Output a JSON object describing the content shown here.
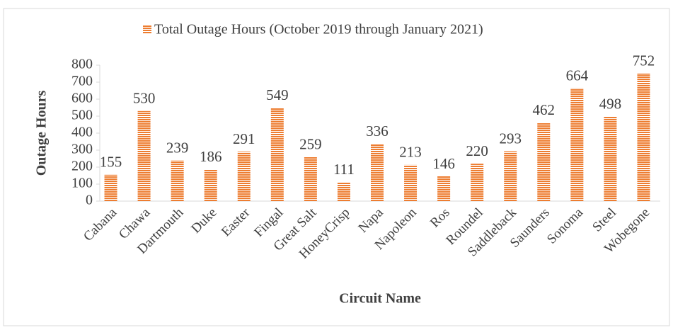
{
  "chart_data": {
    "type": "bar",
    "categories": [
      "Cabana",
      "Chawa",
      "Dartmouth",
      "Duke",
      "Easter",
      "Fingal",
      "Great Salt",
      "HoneyCrisp",
      "Napa",
      "Napoleon",
      "Ros",
      "Roundel",
      "Saddleback",
      "Saunders",
      "Sonoma",
      "Steel",
      "Wobegone"
    ],
    "series": [
      {
        "name": "Total Outage Hours (October 2019 through January 2021)",
        "color": "#ed7d31",
        "values": [
          155,
          530,
          239,
          186,
          291,
          549,
          259,
          111,
          336,
          213,
          146,
          220,
          293,
          462,
          664,
          498,
          752
        ]
      }
    ],
    "x_label": "Circuit Name",
    "y_label": "Outage Hours",
    "ylim": [
      0,
      800
    ],
    "yticks": [
      0,
      100,
      200,
      300,
      400,
      500,
      600,
      700,
      800
    ],
    "legend": "top",
    "grid": false
  }
}
